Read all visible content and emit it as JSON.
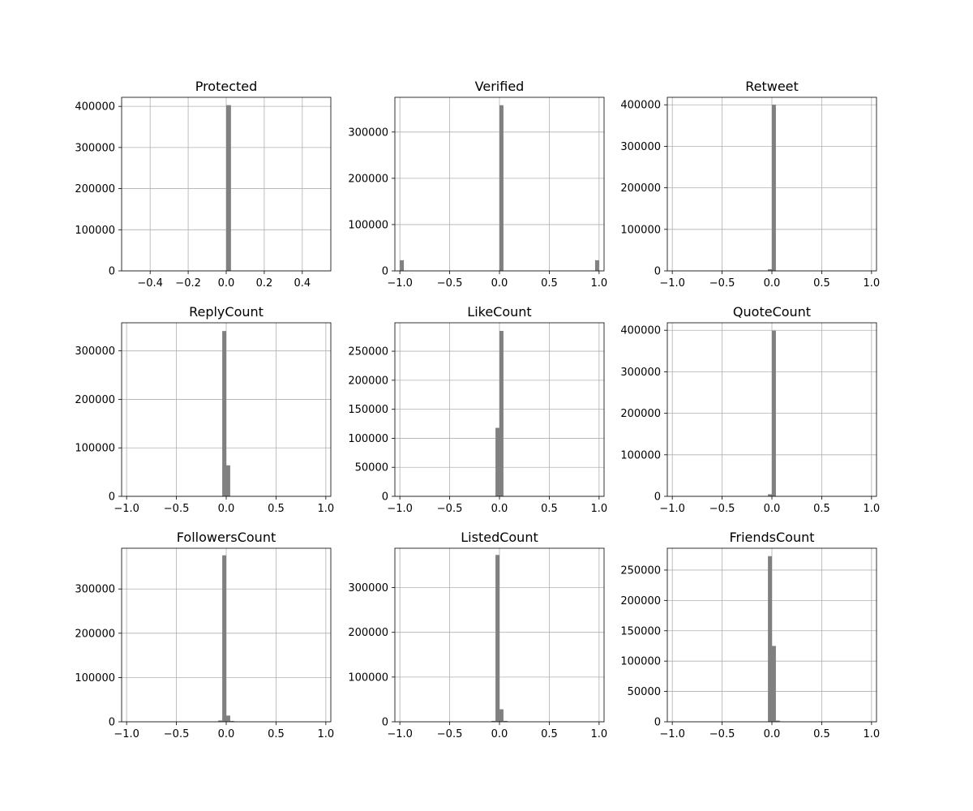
{
  "chart_data": [
    {
      "type": "bar",
      "title": "Protected",
      "xlim": [
        -0.55,
        0.55
      ],
      "ylim": [
        0,
        422000
      ],
      "xticks": [
        -0.4,
        -0.2,
        0.0,
        0.2,
        0.4
      ],
      "xtick_labels": [
        "−0.4",
        "−0.2",
        "0.0",
        "0.2",
        "0.4"
      ],
      "yticks": [
        0,
        100000,
        200000,
        300000,
        400000
      ],
      "ytick_labels": [
        "0",
        "100000",
        "200000",
        "300000",
        "400000"
      ],
      "grid": true,
      "bars": [
        {
          "x0": 0.0,
          "x1": 0.025,
          "value": 403000
        }
      ]
    },
    {
      "type": "bar",
      "title": "Verified",
      "xlim": [
        -1.05,
        1.05
      ],
      "ylim": [
        0,
        375000
      ],
      "xticks": [
        -1.0,
        -0.5,
        0.0,
        0.5,
        1.0
      ],
      "xtick_labels": [
        "−1.0",
        "−0.5",
        "0.0",
        "0.5",
        "1.0"
      ],
      "yticks": [
        0,
        100000,
        200000,
        300000
      ],
      "ytick_labels": [
        "0",
        "100000",
        "200000",
        "300000"
      ],
      "grid": true,
      "bars": [
        {
          "x0": -1.0,
          "x1": -0.96,
          "value": 23000
        },
        {
          "x0": 0.0,
          "x1": 0.04,
          "value": 358000
        },
        {
          "x0": 0.96,
          "x1": 1.0,
          "value": 23000
        }
      ]
    },
    {
      "type": "bar",
      "title": "Retweet",
      "xlim": [
        -1.05,
        1.05
      ],
      "ylim": [
        0,
        418000
      ],
      "xticks": [
        -1.0,
        -0.5,
        0.0,
        0.5,
        1.0
      ],
      "xtick_labels": [
        "−1.0",
        "−0.5",
        "0.0",
        "0.5",
        "1.0"
      ],
      "yticks": [
        0,
        100000,
        200000,
        300000,
        400000
      ],
      "ytick_labels": [
        "0",
        "100000",
        "200000",
        "300000",
        "400000"
      ],
      "grid": true,
      "bars": [
        {
          "x0": -0.04,
          "x1": 0.0,
          "value": 4000
        },
        {
          "x0": 0.0,
          "x1": 0.04,
          "value": 400000
        }
      ]
    },
    {
      "type": "bar",
      "title": "ReplyCount",
      "xlim": [
        -1.05,
        1.05
      ],
      "ylim": [
        0,
        358000
      ],
      "xticks": [
        -1.0,
        -0.5,
        0.0,
        0.5,
        1.0
      ],
      "xtick_labels": [
        "−1.0",
        "−0.5",
        "0.0",
        "0.5",
        "1.0"
      ],
      "yticks": [
        0,
        100000,
        200000,
        300000
      ],
      "ytick_labels": [
        "0",
        "100000",
        "200000",
        "300000"
      ],
      "grid": true,
      "bars": [
        {
          "x0": -0.04,
          "x1": 0.0,
          "value": 341000
        },
        {
          "x0": 0.0,
          "x1": 0.04,
          "value": 64000
        }
      ]
    },
    {
      "type": "bar",
      "title": "LikeCount",
      "xlim": [
        -1.05,
        1.05
      ],
      "ylim": [
        0,
        299000
      ],
      "xticks": [
        -1.0,
        -0.5,
        0.0,
        0.5,
        1.0
      ],
      "xtick_labels": [
        "−1.0",
        "−0.5",
        "0.0",
        "0.5",
        "1.0"
      ],
      "yticks": [
        0,
        50000,
        100000,
        150000,
        200000,
        250000
      ],
      "ytick_labels": [
        "0",
        "50000",
        "100000",
        "150000",
        "200000",
        "250000"
      ],
      "grid": true,
      "bars": [
        {
          "x0": -0.04,
          "x1": 0.0,
          "value": 118000
        },
        {
          "x0": 0.0,
          "x1": 0.04,
          "value": 285000
        }
      ]
    },
    {
      "type": "bar",
      "title": "QuoteCount",
      "xlim": [
        -1.05,
        1.05
      ],
      "ylim": [
        0,
        418000
      ],
      "xticks": [
        -1.0,
        -0.5,
        0.0,
        0.5,
        1.0
      ],
      "xtick_labels": [
        "−1.0",
        "−0.5",
        "0.0",
        "0.5",
        "1.0"
      ],
      "yticks": [
        0,
        100000,
        200000,
        300000,
        400000
      ],
      "ytick_labels": [
        "0",
        "100000",
        "200000",
        "300000",
        "400000"
      ],
      "grid": true,
      "bars": [
        {
          "x0": -0.04,
          "x1": 0.0,
          "value": 5000
        },
        {
          "x0": 0.0,
          "x1": 0.04,
          "value": 399000
        }
      ]
    },
    {
      "type": "bar",
      "title": "FollowersCount",
      "xlim": [
        -1.05,
        1.05
      ],
      "ylim": [
        0,
        392000
      ],
      "xticks": [
        -1.0,
        -0.5,
        0.0,
        0.5,
        1.0
      ],
      "xtick_labels": [
        "−1.0",
        "−0.5",
        "0.0",
        "0.5",
        "1.0"
      ],
      "yticks": [
        0,
        100000,
        200000,
        300000
      ],
      "ytick_labels": [
        "0",
        "100000",
        "200000",
        "300000"
      ],
      "grid": true,
      "bars": [
        {
          "x0": -0.08,
          "x1": -0.04,
          "value": 3000
        },
        {
          "x0": -0.04,
          "x1": 0.0,
          "value": 376000
        },
        {
          "x0": 0.0,
          "x1": 0.04,
          "value": 14000
        },
        {
          "x0": 0.04,
          "x1": 0.08,
          "value": 2000
        }
      ]
    },
    {
      "type": "bar",
      "title": "ListedCount",
      "xlim": [
        -1.05,
        1.05
      ],
      "ylim": [
        0,
        388000
      ],
      "xticks": [
        -1.0,
        -0.5,
        0.0,
        0.5,
        1.0
      ],
      "xtick_labels": [
        "−1.0",
        "−0.5",
        "0.0",
        "0.5",
        "1.0"
      ],
      "yticks": [
        0,
        100000,
        200000,
        300000
      ],
      "ytick_labels": [
        "0",
        "100000",
        "200000",
        "300000"
      ],
      "grid": true,
      "bars": [
        {
          "x0": -0.08,
          "x1": -0.04,
          "value": 2000
        },
        {
          "x0": -0.04,
          "x1": 0.0,
          "value": 373000
        },
        {
          "x0": 0.0,
          "x1": 0.04,
          "value": 28000
        },
        {
          "x0": 0.04,
          "x1": 0.08,
          "value": 2000
        }
      ]
    },
    {
      "type": "bar",
      "title": "FriendsCount",
      "xlim": [
        -1.05,
        1.05
      ],
      "ylim": [
        0,
        286000
      ],
      "xticks": [
        -1.0,
        -0.5,
        0.0,
        0.5,
        1.0
      ],
      "xtick_labels": [
        "−1.0",
        "−0.5",
        "0.0",
        "0.5",
        "1.0"
      ],
      "yticks": [
        0,
        50000,
        100000,
        150000,
        200000,
        250000
      ],
      "ytick_labels": [
        "0",
        "50000",
        "100000",
        "150000",
        "200000",
        "250000"
      ],
      "grid": true,
      "bars": [
        {
          "x0": -0.04,
          "x1": 0.0,
          "value": 273000
        },
        {
          "x0": 0.0,
          "x1": 0.04,
          "value": 125000
        },
        {
          "x0": 0.04,
          "x1": 0.08,
          "value": 2000
        }
      ]
    }
  ],
  "colors": {
    "bar": "#808080",
    "grid": "#b0b0b0",
    "axis": "#000000"
  }
}
